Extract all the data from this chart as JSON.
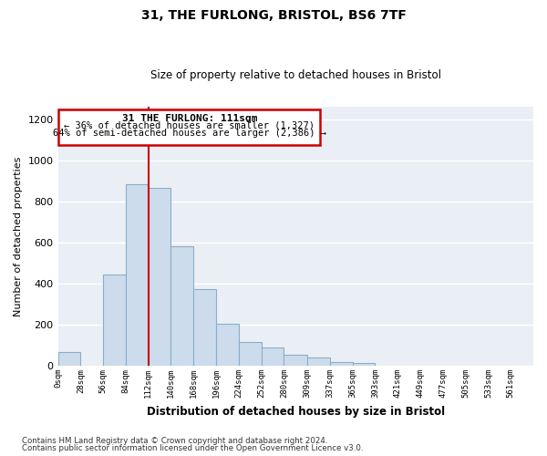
{
  "title": "31, THE FURLONG, BRISTOL, BS6 7TF",
  "subtitle": "Size of property relative to detached houses in Bristol",
  "xlabel": "Distribution of detached houses by size in Bristol",
  "ylabel": "Number of detached properties",
  "bar_color": "#cddcec",
  "bar_edge_color": "#8aaec8",
  "background_color": "#ffffff",
  "plot_bg_color": "#eaeff5",
  "grid_color": "#ffffff",
  "vline_x": 112,
  "vline_color": "#cc0000",
  "annotation_title": "31 THE FURLONG: 111sqm",
  "annotation_line1": "← 36% of detached houses are smaller (1,327)",
  "annotation_line2": "64% of semi-detached houses are larger (2,386) →",
  "annotation_box_color": "#ffffff",
  "annotation_box_edge": "#cc0000",
  "bins": [
    0,
    28,
    56,
    84,
    112,
    140,
    168,
    196,
    224,
    252,
    280,
    309,
    337,
    365,
    393,
    421,
    449,
    477,
    505,
    533,
    561
  ],
  "counts": [
    65,
    0,
    445,
    885,
    865,
    580,
    375,
    205,
    115,
    90,
    55,
    42,
    18,
    15,
    0,
    0,
    0,
    0,
    0,
    0
  ],
  "tick_labels": [
    "0sqm",
    "28sqm",
    "56sqm",
    "84sqm",
    "112sqm",
    "140sqm",
    "168sqm",
    "196sqm",
    "224sqm",
    "252sqm",
    "280sqm",
    "309sqm",
    "337sqm",
    "365sqm",
    "393sqm",
    "421sqm",
    "449sqm",
    "477sqm",
    "505sqm",
    "533sqm",
    "561sqm"
  ],
  "ylim": [
    0,
    1260
  ],
  "xlim": [
    0,
    589
  ],
  "footnote1": "Contains HM Land Registry data © Crown copyright and database right 2024.",
  "footnote2": "Contains public sector information licensed under the Open Government Licence v3.0."
}
